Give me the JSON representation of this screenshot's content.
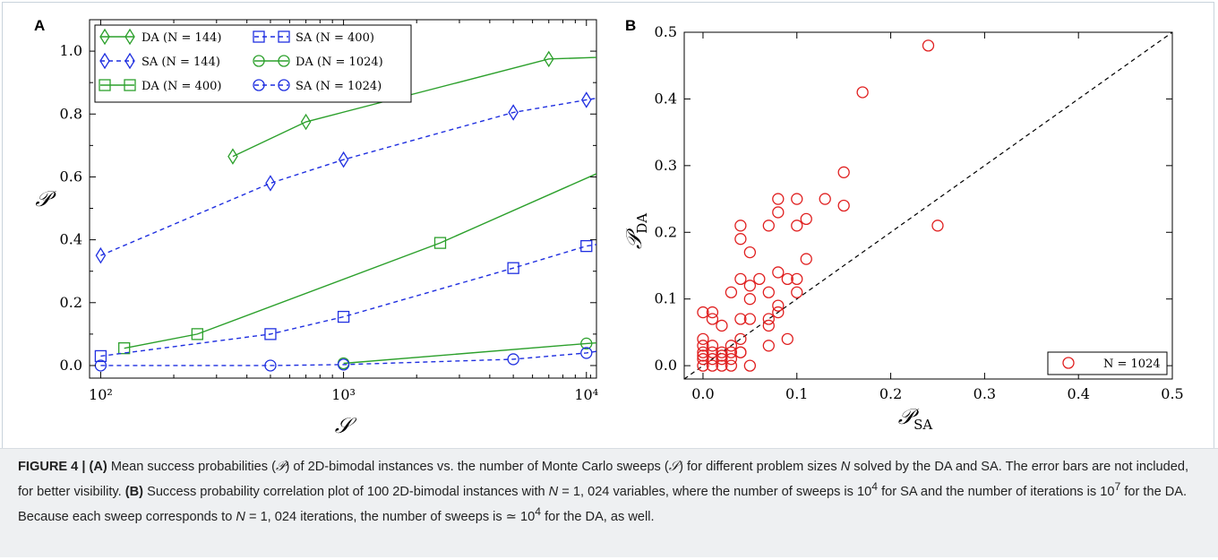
{
  "chart_data": [
    {
      "panel": "A",
      "type": "line",
      "x_scale": "log",
      "xlabel": "𝒮",
      "ylabel": "𝒫",
      "xlim": [
        90,
        11000
      ],
      "ylim": [
        -0.04,
        1.1
      ],
      "xticks": [
        100,
        1000,
        10000
      ],
      "xtick_labels": [
        "10²",
        "10³",
        "10⁴"
      ],
      "yticks": [
        0.0,
        0.2,
        0.4,
        0.6,
        0.8,
        1.0
      ],
      "ytick_labels": [
        "0.0",
        "0.2",
        "0.4",
        "0.6",
        "0.8",
        "1.0"
      ],
      "grid": false,
      "legend_position": "top-left",
      "series": [
        {
          "name": "DA (N = 144)",
          "algo": "DA",
          "marker": "diamond",
          "color": "#2ca02c",
          "dash": "solid",
          "x": [
            350,
            700,
            7000,
            11000
          ],
          "y": [
            0.665,
            0.775,
            0.975,
            0.98
          ]
        },
        {
          "name": "SA (N = 144)",
          "algo": "SA",
          "marker": "diamond",
          "color": "#1f2fe0",
          "dash": "dashed",
          "x": [
            100,
            500,
            1000,
            5000,
            10000,
            11000
          ],
          "y": [
            0.35,
            0.58,
            0.655,
            0.805,
            0.845,
            0.85
          ]
        },
        {
          "name": "DA (N = 400)",
          "algo": "DA",
          "marker": "square",
          "color": "#2ca02c",
          "dash": "solid",
          "x": [
            125,
            250,
            2500,
            11000
          ],
          "y": [
            0.055,
            0.1,
            0.39,
            0.61
          ]
        },
        {
          "name": "SA (N = 400)",
          "algo": "SA",
          "marker": "square",
          "color": "#1f2fe0",
          "dash": "dashed",
          "x": [
            100,
            500,
            1000,
            5000,
            10000,
            11000
          ],
          "y": [
            0.03,
            0.1,
            0.155,
            0.31,
            0.38,
            0.385
          ]
        },
        {
          "name": "DA (N = 1024)",
          "algo": "DA",
          "marker": "circle",
          "color": "#2ca02c",
          "dash": "solid",
          "x": [
            1000,
            10000,
            11000
          ],
          "y": [
            0.007,
            0.07,
            0.072
          ]
        },
        {
          "name": "SA (N = 1024)",
          "algo": "SA",
          "marker": "circle",
          "color": "#1f2fe0",
          "dash": "dashed",
          "x": [
            100,
            500,
            1000,
            5000,
            10000,
            11000
          ],
          "y": [
            0.0,
            0.0,
            0.003,
            0.02,
            0.04,
            0.045
          ]
        }
      ],
      "marker_counts": [
        3,
        5,
        3,
        5,
        2,
        5
      ]
    },
    {
      "panel": "B",
      "type": "scatter",
      "xlabel": "𝒫SA",
      "ylabel": "𝒫DA",
      "xlim": [
        -0.02,
        0.5
      ],
      "ylim": [
        -0.02,
        0.5
      ],
      "xticks": [
        0.0,
        0.1,
        0.2,
        0.3,
        0.4,
        0.5
      ],
      "xtick_labels": [
        "0.0",
        "0.1",
        "0.2",
        "0.3",
        "0.4",
        "0.5"
      ],
      "yticks": [
        0.0,
        0.1,
        0.2,
        0.3,
        0.4,
        0.5
      ],
      "ytick_labels": [
        "0.0",
        "0.1",
        "0.2",
        "0.3",
        "0.4",
        "0.5"
      ],
      "diagonal": {
        "style": "dashed",
        "color": "#000000",
        "from": [
          0,
          0
        ],
        "to": [
          0.5,
          0.5
        ]
      },
      "legend_position": "bottom-right",
      "grid": false,
      "series": [
        {
          "name": "N = 1024",
          "marker": "circle",
          "color": "#e02020",
          "points": [
            [
              0.24,
              0.48
            ],
            [
              0.17,
              0.41
            ],
            [
              0.15,
              0.29
            ],
            [
              0.15,
              0.24
            ],
            [
              0.25,
              0.21
            ],
            [
              0.13,
              0.25
            ],
            [
              0.1,
              0.25
            ],
            [
              0.08,
              0.25
            ],
            [
              0.08,
              0.23
            ],
            [
              0.11,
              0.22
            ],
            [
              0.1,
              0.21
            ],
            [
              0.07,
              0.21
            ],
            [
              0.04,
              0.21
            ],
            [
              0.04,
              0.19
            ],
            [
              0.05,
              0.17
            ],
            [
              0.11,
              0.16
            ],
            [
              0.08,
              0.14
            ],
            [
              0.09,
              0.13
            ],
            [
              0.1,
              0.13
            ],
            [
              0.06,
              0.13
            ],
            [
              0.04,
              0.13
            ],
            [
              0.05,
              0.12
            ],
            [
              0.03,
              0.11
            ],
            [
              0.07,
              0.11
            ],
            [
              0.1,
              0.11
            ],
            [
              0.05,
              0.1
            ],
            [
              0.08,
              0.09
            ],
            [
              0.01,
              0.08
            ],
            [
              0.0,
              0.08
            ],
            [
              0.01,
              0.07
            ],
            [
              0.04,
              0.07
            ],
            [
              0.05,
              0.07
            ],
            [
              0.07,
              0.07
            ],
            [
              0.08,
              0.08
            ],
            [
              0.07,
              0.06
            ],
            [
              0.02,
              0.06
            ],
            [
              0.09,
              0.04
            ],
            [
              0.04,
              0.04
            ],
            [
              0.0,
              0.04
            ],
            [
              0.0,
              0.03
            ],
            [
              0.01,
              0.03
            ],
            [
              0.03,
              0.03
            ],
            [
              0.04,
              0.02
            ],
            [
              0.07,
              0.03
            ],
            [
              0.0,
              0.02
            ],
            [
              0.01,
              0.02
            ],
            [
              0.02,
              0.02
            ],
            [
              0.03,
              0.02
            ],
            [
              0.0,
              0.01
            ],
            [
              0.01,
              0.01
            ],
            [
              0.02,
              0.01
            ],
            [
              0.03,
              0.01
            ],
            [
              0.0,
              0.0
            ],
            [
              0.01,
              0.0
            ],
            [
              0.02,
              0.0
            ],
            [
              0.03,
              0.0
            ],
            [
              0.05,
              0.0
            ],
            [
              0.04,
              0.02
            ],
            [
              0.0,
              0.015
            ],
            [
              0.02,
              0.015
            ]
          ]
        }
      ]
    }
  ],
  "panel_letters": [
    "A",
    "B"
  ],
  "caption": {
    "label": "FIGURE 4 |",
    "a_marker": "(A)",
    "a_text_1": " Mean success probabilities (",
    "a_sym_p": "𝒫",
    "a_text_2": ") of 2D-bimodal instances vs. the number of Monte Carlo sweeps (",
    "a_sym_s": "𝒮",
    "a_text_3": ") for different problem sizes ",
    "a_n": "N",
    "a_text_4": " solved by the DA and SA. The error bars are not included, for better visibility. ",
    "b_marker": "(B)",
    "b_text_1": " Success probability correlation plot of 100 2D-bimodal instances with ",
    "b_n1": "N",
    "b_text_2": " = 1, 024 variables, where the number of sweeps is 10",
    "b_exp4a": "4",
    "b_text_3": " for SA and the number of iterations is 10",
    "b_exp7": "7",
    "b_text_4": " for the DA. Because each sweep corresponds to ",
    "b_n2": "N",
    "b_text_5": " = 1, 024 iterations, the number of sweeps is ≃ 10",
    "b_exp4b": "4",
    "b_text_6": " for the DA, as well."
  }
}
